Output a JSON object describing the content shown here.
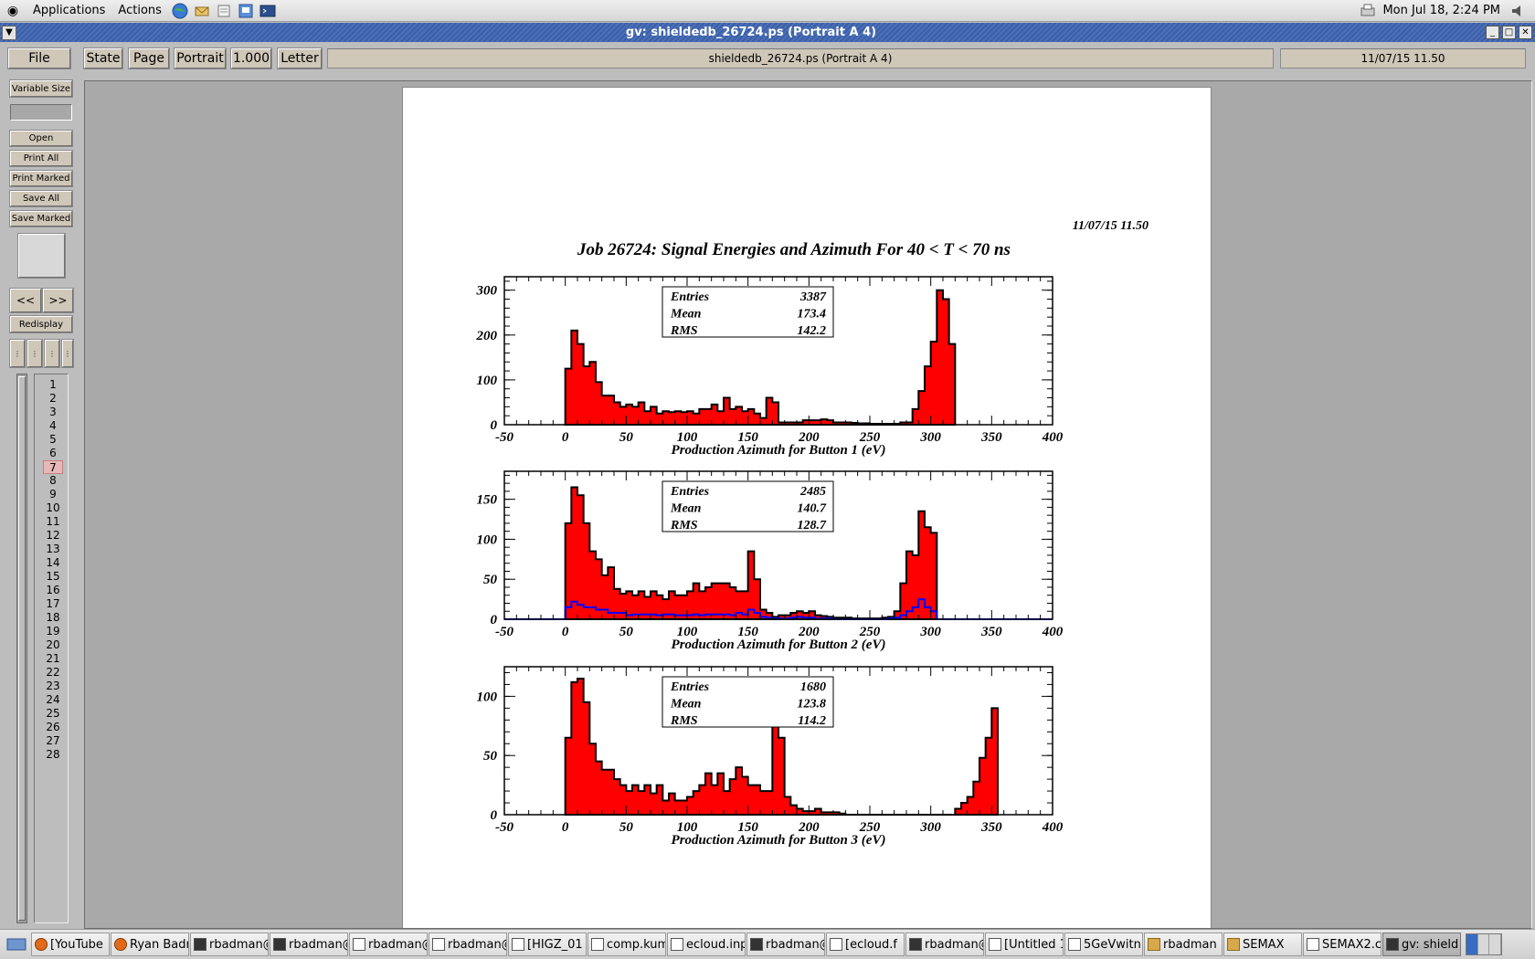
{
  "panel": {
    "menus": [
      "Applications",
      "Actions"
    ],
    "clock": "Mon Jul 18,  2:24 PM"
  },
  "window": {
    "title": "gv: shieldedb_26724.ps (Portrait A 4)"
  },
  "toolbar": {
    "file": "File",
    "state": "State",
    "page": "Page",
    "orientation": "Portrait",
    "scale": "1.000",
    "media": "Letter",
    "filename": "shieldedb_26724.ps (Portrait A 4)",
    "date": "11/07/15   11.50"
  },
  "sidebar": {
    "variable_size": "Variable Size",
    "open": "Open",
    "print_all": "Print All",
    "print_marked": "Print Marked",
    "save_all": "Save All",
    "save_marked": "Save Marked",
    "prev": "<<",
    "next": ">>",
    "redisplay": "Redisplay",
    "pages": [
      "1",
      "2",
      "3",
      "4",
      "5",
      "6",
      "7",
      "8",
      "9",
      "10",
      "11",
      "12",
      "13",
      "14",
      "15",
      "16",
      "17",
      "18",
      "19",
      "20",
      "21",
      "22",
      "23",
      "24",
      "25",
      "26",
      "27",
      "28"
    ],
    "current_page": "7"
  },
  "document": {
    "timestamp": "11/07/15   11.50",
    "title": "Job 26724: Signal Energies and Azimuth For 40 < T < 70 ns",
    "stats_labels": [
      "Entries",
      "Mean",
      "RMS"
    ]
  },
  "chart_data": [
    {
      "type": "histogram",
      "xlabel": "Production Azimuth for Button 1 (eV)",
      "xlim": [
        -50,
        400
      ],
      "ylim": [
        0,
        330
      ],
      "xticks": [
        "-50",
        "0",
        "50",
        "100",
        "150",
        "200",
        "250",
        "300",
        "350",
        "400"
      ],
      "yticks": [
        "0",
        "100",
        "200",
        "300"
      ],
      "stats": {
        "Entries": "3387",
        "Mean": "173.4",
        "RMS": "142.2"
      },
      "bin_width": 5,
      "x_start": 0,
      "series": [
        {
          "color": "#ff0000",
          "values": [
            125,
            210,
            180,
            130,
            140,
            95,
            65,
            65,
            50,
            40,
            45,
            40,
            50,
            30,
            40,
            25,
            30,
            28,
            30,
            28,
            30,
            25,
            35,
            35,
            45,
            30,
            60,
            35,
            40,
            30,
            35,
            25,
            15,
            60,
            50,
            5,
            5,
            5,
            5,
            10,
            10,
            10,
            12,
            10,
            5,
            5,
            5,
            4,
            3,
            3,
            2,
            2,
            2,
            2,
            2,
            5,
            5,
            35,
            75,
            130,
            185,
            300,
            280,
            180
          ]
        }
      ]
    },
    {
      "type": "histogram",
      "xlabel": "Production Azimuth for Button 2 (eV)",
      "xlim": [
        -50,
        400
      ],
      "ylim": [
        0,
        185
      ],
      "xticks": [
        "-50",
        "0",
        "50",
        "100",
        "150",
        "200",
        "250",
        "300",
        "350",
        "400"
      ],
      "yticks": [
        "0",
        "50",
        "100",
        "150"
      ],
      "stats": {
        "Entries": "2485",
        "Mean": "140.7",
        "RMS": "128.7"
      },
      "bin_width": 5,
      "x_start": 0,
      "series": [
        {
          "color": "#ff0000",
          "values": [
            120,
            165,
            155,
            120,
            85,
            75,
            55,
            65,
            38,
            32,
            35,
            30,
            35,
            28,
            35,
            30,
            25,
            35,
            30,
            30,
            35,
            45,
            35,
            40,
            45,
            45,
            45,
            40,
            35,
            35,
            85,
            50,
            12,
            8,
            3,
            5,
            5,
            8,
            10,
            8,
            10,
            5,
            4,
            3,
            2,
            2,
            2,
            1,
            1,
            1,
            1,
            1,
            2,
            3,
            10,
            45,
            85,
            80,
            135,
            115,
            108
          ]
        },
        {
          "color": "#0000ff",
          "values": [
            15,
            22,
            18,
            15,
            15,
            12,
            12,
            8,
            8,
            8,
            5,
            6,
            6,
            6,
            6,
            5,
            6,
            6,
            5,
            5,
            5,
            6,
            5,
            6,
            6,
            6,
            6,
            5,
            8,
            6,
            12,
            8,
            3,
            2,
            1,
            1,
            1,
            2,
            3,
            2,
            2,
            1,
            1,
            1,
            0,
            0,
            0,
            0,
            0,
            0,
            0,
            0,
            0,
            1,
            2,
            5,
            10,
            15,
            25,
            15,
            10
          ]
        }
      ]
    },
    {
      "type": "histogram",
      "xlabel": "Production Azimuth for Button 3 (eV)",
      "xlim": [
        -50,
        400
      ],
      "ylim": [
        0,
        125
      ],
      "xticks": [
        "-50",
        "0",
        "50",
        "100",
        "150",
        "200",
        "250",
        "300",
        "350",
        "400"
      ],
      "yticks": [
        "0",
        "50",
        "100"
      ],
      "stats": {
        "Entries": "1680",
        "Mean": "123.8",
        "RMS": "114.2"
      },
      "bin_width": 5,
      "x_start": 0,
      "series": [
        {
          "color": "#ff0000",
          "values": [
            65,
            112,
            115,
            95,
            60,
            45,
            38,
            38,
            30,
            25,
            20,
            25,
            20,
            25,
            18,
            25,
            12,
            18,
            12,
            12,
            15,
            20,
            25,
            35,
            25,
            35,
            20,
            30,
            40,
            32,
            25,
            25,
            20,
            20,
            75,
            65,
            15,
            8,
            5,
            3,
            3,
            5,
            2,
            2,
            2,
            1,
            0,
            0,
            0,
            0,
            0,
            0,
            0,
            0,
            0,
            0,
            0,
            0,
            0,
            0,
            0,
            0,
            0,
            0,
            5,
            10,
            15,
            28,
            48,
            65,
            90
          ]
        }
      ]
    }
  ],
  "taskbar": {
    "tasks": [
      {
        "label": "[YouTube",
        "icon": "fox"
      },
      {
        "label": "Ryan Badr",
        "icon": "fox"
      },
      {
        "label": "rbadman@",
        "icon": "term"
      },
      {
        "label": "rbadman@",
        "icon": "term"
      },
      {
        "label": "rbadman@",
        "icon": "doc"
      },
      {
        "label": "rbadman@",
        "icon": "doc"
      },
      {
        "label": "[HIGZ_01",
        "icon": "doc"
      },
      {
        "label": "comp.kum",
        "icon": "doc"
      },
      {
        "label": "ecloud.inp",
        "icon": "doc"
      },
      {
        "label": "rbadman@",
        "icon": "term"
      },
      {
        "label": "[ecloud.f",
        "icon": "doc"
      },
      {
        "label": "rbadman@",
        "icon": "term"
      },
      {
        "label": "[Untitled 1",
        "icon": "doc"
      },
      {
        "label": "5GeVwitn",
        "icon": "doc"
      },
      {
        "label": "rbadman",
        "icon": "folder"
      },
      {
        "label": "SEMAX",
        "icon": "folder"
      },
      {
        "label": "SEMAX2.c",
        "icon": "doc"
      },
      {
        "label": "gv: shield",
        "icon": "term"
      }
    ]
  }
}
